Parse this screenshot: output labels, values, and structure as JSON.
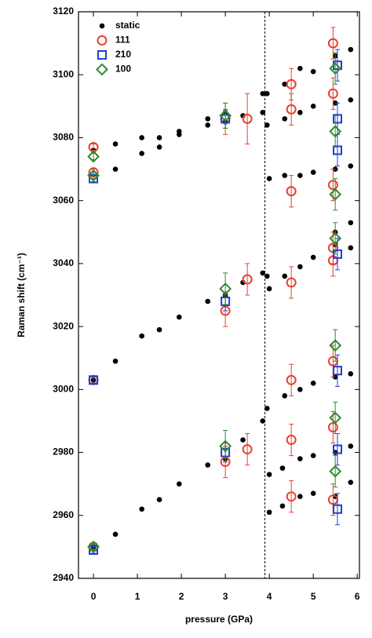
{
  "chart_data": {
    "type": "scatter",
    "xlabel": "pressure (GPa)",
    "ylabel": "Raman shift (cm⁻¹)",
    "xlim": [
      -0.34,
      6.05
    ],
    "ylim": [
      2940,
      3120
    ],
    "xticks": [
      0,
      1,
      2,
      3,
      4,
      5,
      6
    ],
    "yticks": [
      2940,
      2960,
      2980,
      3000,
      3020,
      3040,
      3060,
      3080,
      3100,
      3120
    ],
    "vline": 3.9,
    "legend": "upper left",
    "series": [
      {
        "name": "static",
        "color": "#000000",
        "marker": "dot",
        "x": [
          0,
          0.5,
          1.1,
          1.5,
          1.95,
          2.6,
          3.0,
          3.4,
          3.85,
          3.95,
          4.0,
          4.3,
          4.7,
          5.0,
          5.5,
          5.85,
          4.0,
          4.3,
          4.7,
          5.0,
          5.5,
          5.85,
          4.35,
          4.7,
          5.0,
          5.5,
          5.85,
          0,
          0.5,
          1.1,
          1.5,
          1.95,
          2.6,
          3.0,
          3.4,
          3.85,
          3.95,
          4.0,
          4.35,
          4.7,
          5.0,
          5.5,
          5.85,
          5.5,
          5.85,
          0.5,
          1.1,
          1.5,
          1.95,
          2.6,
          3.0,
          3.4,
          3.85,
          3.95,
          3.85,
          3.95,
          4.0,
          4.35,
          4.7,
          5.0,
          5.5,
          5.85,
          0,
          0.5,
          1.1,
          1.5,
          1.95,
          2.6,
          3.0,
          4.35,
          4.35,
          4.7,
          5.0,
          5.5,
          5.85,
          5.85,
          5.5,
          4.7,
          5.0
        ],
        "values": [
          2950,
          2954,
          2962,
          2965,
          2970,
          2976,
          2978,
          2984,
          2990,
          2994,
          2961,
          2963,
          2966,
          2967,
          2966,
          2970.5,
          2973,
          2975,
          2978,
          2979,
          2980,
          2982,
          2998,
          3000,
          3002,
          3004,
          3005,
          3003,
          3009,
          3017,
          3019,
          3023,
          3028,
          3030,
          3034,
          3037,
          3036,
          3032,
          3036,
          3039,
          3042,
          3046,
          3045,
          3050,
          3053,
          3070,
          3075,
          3077,
          3081,
          3084,
          3085,
          3087,
          3088,
          3084,
          3094,
          3094,
          3067,
          3068,
          3068,
          3069,
          3070,
          3071,
          3076,
          3078,
          3080,
          3080,
          3082,
          3086,
          3088,
          3086,
          3097,
          3102,
          3101,
          3091,
          3092,
          3108,
          3106,
          3088,
          3090
        ]
      },
      {
        "name": "111",
        "color": "#e8412c",
        "marker": "circle",
        "x": [
          0,
          0,
          0,
          0,
          3,
          3,
          3,
          3.5,
          3.5,
          3.5,
          4.5,
          4.5,
          4.5,
          4.5,
          4.5,
          4.5,
          4.5,
          5.45,
          5.45,
          5.45,
          5.45,
          5.45,
          5.45,
          5.45,
          5.45
        ],
        "values": [
          3077,
          3069,
          2950,
          3003,
          3086,
          3025,
          2977,
          3086,
          3035,
          2981,
          3097,
          3089,
          3063,
          3034,
          3003,
          2984,
          2966,
          3110,
          3094,
          3065,
          3045,
          3041,
          3009,
          2988,
          2965
        ],
        "errors": [
          1,
          1,
          1,
          1,
          5,
          5,
          5,
          8,
          5,
          5,
          5,
          5,
          5,
          5,
          5,
          5,
          5,
          5,
          5,
          5,
          5,
          5,
          5,
          5,
          5
        ]
      },
      {
        "name": "210",
        "color": "#2040d0",
        "marker": "square",
        "x": [
          0,
          0,
          0,
          3,
          3,
          3,
          5.55,
          5.55,
          5.55,
          5.55,
          5.55,
          5.55,
          5.55
        ],
        "values": [
          3067,
          3003,
          2949,
          3086,
          3028,
          2980,
          3103,
          3086,
          3076,
          3043,
          3006,
          2981,
          2962
        ],
        "errors": [
          1,
          1,
          1,
          3,
          3,
          3,
          5,
          5,
          5,
          5,
          5,
          5,
          5
        ]
      },
      {
        "name": "100",
        "color": "#2e8b2e",
        "marker": "diamond",
        "x": [
          0,
          0,
          0,
          3,
          3,
          3,
          5.5,
          5.5,
          5.5,
          5.5,
          5.5,
          5.5,
          5.5
        ],
        "values": [
          3074,
          3068,
          2950,
          3087,
          3032,
          2982,
          3102,
          3082,
          3062,
          3048,
          3014,
          2991,
          2974
        ],
        "errors": [
          1,
          1,
          1,
          4,
          5,
          5,
          5,
          5,
          5,
          5,
          5,
          5,
          5
        ]
      }
    ]
  }
}
